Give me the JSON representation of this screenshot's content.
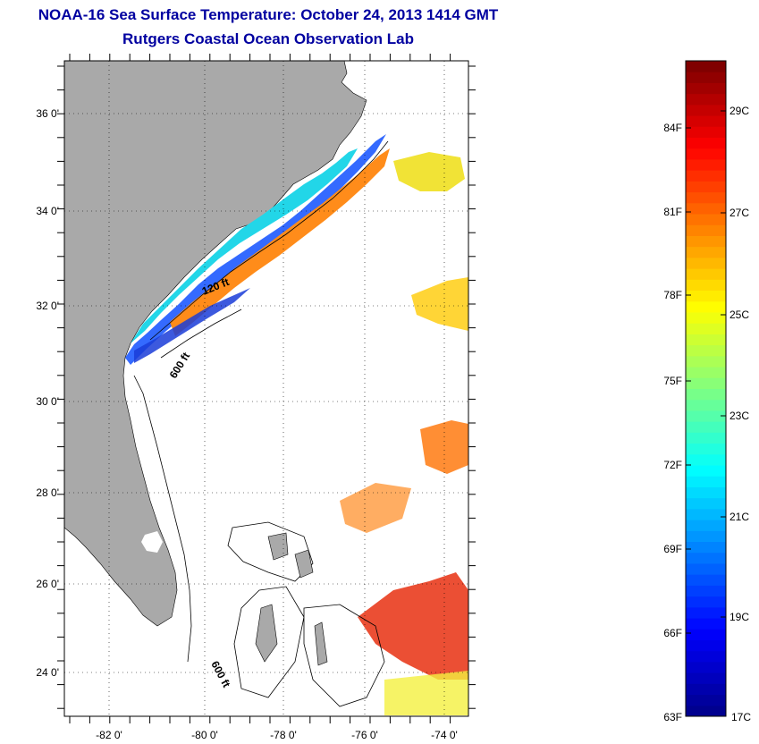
{
  "header": {
    "title": "NOAA-16 Sea Surface Temperature:  October 24, 2013 1414 GMT",
    "subtitle": "Rutgers Coastal Ocean Observation Lab"
  },
  "map": {
    "lat_labels": [
      "36 0'",
      "34 0'",
      "32 0'",
      "30 0'",
      "28 0'",
      "26 0'",
      "24 0'"
    ],
    "lon_labels": [
      "-82 0'",
      "-80 0'",
      "-78 0'",
      "-76 0'",
      "-74 0'"
    ],
    "contour_labels": [
      "120 ft",
      "600 ft",
      "600 ft"
    ],
    "colors": {
      "land": "#a9a9a9",
      "ocean": "#ffffff",
      "grid": "#000000"
    }
  },
  "colorbar": {
    "fahrenheit_labels": [
      "84F",
      "81F",
      "78F",
      "75F",
      "72F",
      "69F",
      "66F",
      "63F"
    ],
    "celsius_labels": [
      "29C",
      "27C",
      "25C",
      "23C",
      "21C",
      "19C",
      "17C"
    ],
    "colors": [
      "#00008f",
      "#0000ff",
      "#0080ff",
      "#00ffff",
      "#80ff80",
      "#ffff00",
      "#ff8000",
      "#ff0000",
      "#800000"
    ]
  }
}
